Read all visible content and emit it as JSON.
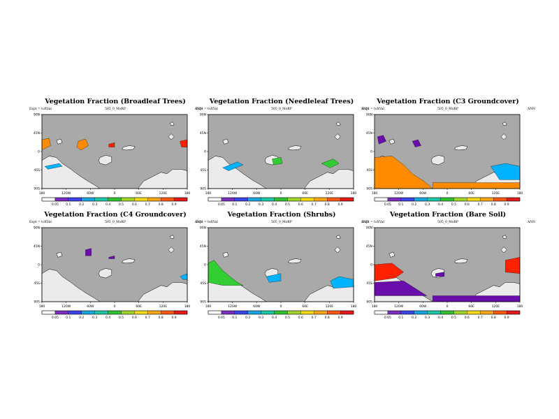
{
  "figure": {
    "case": "505_0_MoRP",
    "expt": "Expt = toXVal",
    "season": "ANN",
    "lon_ticks": [
      "180",
      "120W",
      "60W",
      "0",
      "60E",
      "120E",
      "180"
    ],
    "lat_ticks": [
      "90N",
      "45N",
      "0",
      "45S",
      "90S"
    ],
    "colorbar_ticks": [
      "0.05",
      "0.1",
      "0.2",
      "0.3",
      "0.4",
      "0.5",
      "0.6",
      "0.7",
      "0.8",
      "0.9"
    ],
    "colors": {
      "ocean": "#a9a9a9",
      "land_missing": "#ebebeb",
      "low": "#6a0dad",
      "mid": "#00b2ff",
      "green": "#32cd32",
      "high": "#ff8c00",
      "max": "#ff2200"
    }
  },
  "panels": [
    {
      "id": "broadleaf",
      "title": "Vegetation Fraction (Broadleaf Trees)"
    },
    {
      "id": "needleleaf",
      "title": "Vegetation Fraction (Needleleaf Trees)"
    },
    {
      "id": "c3",
      "title": "Vegetation Fraction (C3 Groundcover)"
    },
    {
      "id": "c4",
      "title": "Vegetation Fraction (C4 Groundcover)"
    },
    {
      "id": "shrubs",
      "title": "Vegetation Fraction (Shrubs)"
    },
    {
      "id": "baresoil",
      "title": "Vegetation Fraction (Bare Soil)"
    }
  ]
}
